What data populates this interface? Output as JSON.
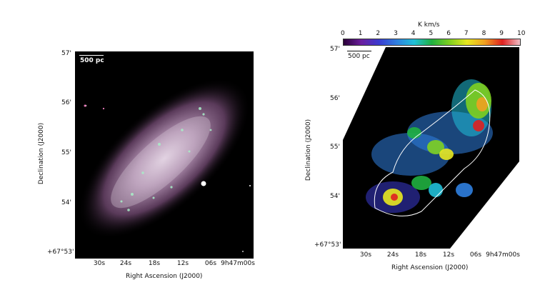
{
  "left_panel": {
    "scale_label": "500 pc",
    "xlabel": "Right Ascension (J2000)",
    "ylabel": "Declination (J2000)",
    "x_ticks": [
      "30s",
      "24s",
      "18s",
      "12s",
      "06s",
      "9h47m00s"
    ],
    "y_ticks": [
      "57'",
      "56'",
      "55'",
      "54'",
      "+67°53'"
    ]
  },
  "right_panel": {
    "scale_label": "500 pc",
    "xlabel": "Right Ascension (J2000)",
    "ylabel": "Declination (J2000)",
    "x_ticks": [
      "30s",
      "24s",
      "18s",
      "12s",
      "06s",
      "9h47m00s"
    ],
    "y_ticks": [
      "57'",
      "56'",
      "55'",
      "54'",
      "+67°53'"
    ],
    "colorbar_label": "K km/s",
    "colorbar_ticks": [
      "0",
      "1",
      "2",
      "3",
      "4",
      "5",
      "6",
      "7",
      "8",
      "9",
      "10"
    ],
    "colorbar_colors": [
      "#2a0038",
      "#6b1e9e",
      "#3a3ad0",
      "#2f7fe0",
      "#20c0d8",
      "#20b040",
      "#7fd020",
      "#e8e820",
      "#f0a020",
      "#e02020",
      "#f0c0c8"
    ]
  },
  "chart_data": [
    {
      "type": "heatmap",
      "title": "",
      "xlabel": "Right Ascension (J2000)",
      "ylabel": "Declination (J2000)",
      "x_ticks": [
        "30s",
        "24s",
        "18s",
        "12s",
        "06s",
        "9h47m00s"
      ],
      "y_ticks": [
        "57'",
        "56'",
        "55'",
        "54'",
        "+67°53'"
      ]
    },
    {
      "type": "heatmap",
      "title": "",
      "xlabel": "Right Ascension (J2000)",
      "ylabel": "Declination (J2000)",
      "x_ticks": [
        "30s",
        "24s",
        "18s",
        "12s",
        "06s",
        "9h47m00s"
      ],
      "y_ticks": [
        "57'",
        "56'",
        "55'",
        "54'",
        "+67°53'"
      ],
      "colorbar": {
        "label": "K km/s",
        "range": [
          0,
          10
        ]
      }
    }
  ]
}
